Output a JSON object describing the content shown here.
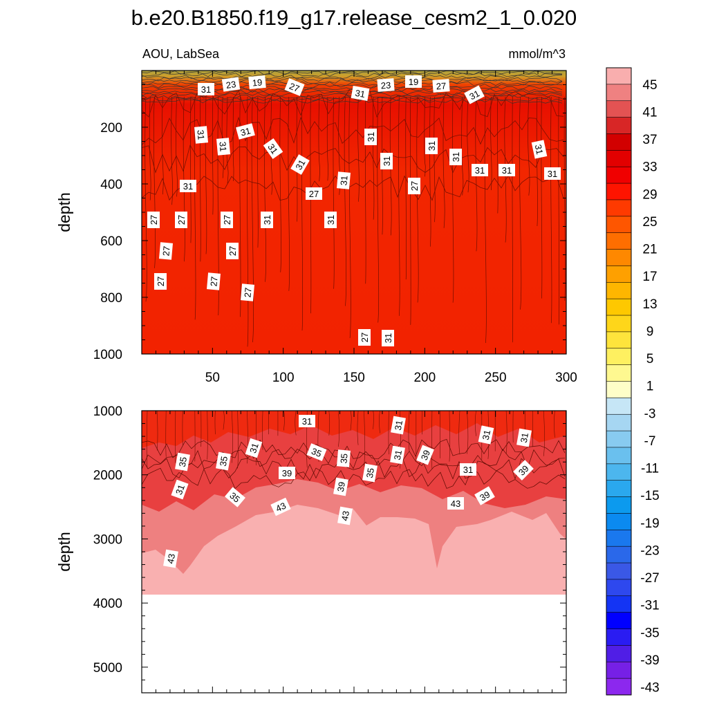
{
  "chart_data": {
    "type": "heatmap",
    "title": "b.e20.B1850.f19_g17.release_cesm2_1_0.020",
    "left_label": "AOU, LabSea",
    "right_label": "mmol/m^3",
    "colorbar_labels": [
      "45",
      "41",
      "37",
      "33",
      "29",
      "25",
      "21",
      "17",
      "13",
      "9",
      "5",
      "1",
      "-3",
      "-7",
      "-11",
      "-15",
      "-19",
      "-23",
      "-27",
      "-31",
      "-35",
      "-39",
      "-43"
    ],
    "palette": [
      "#f9aeae",
      "#ef8181",
      "#e35353",
      "#d82626",
      "#d20000",
      "#e20000",
      "#f00000",
      "#fe1400",
      "#fe3a00",
      "#fe5600",
      "#fe6e00",
      "#fe8800",
      "#fea000",
      "#feb600",
      "#fec800",
      "#fed61a",
      "#fee43c",
      "#fef060",
      "#fef890",
      "#fefec8",
      "#c6e6f6",
      "#a6d6f2",
      "#88cbf0",
      "#6ac0ee",
      "#4cb6ee",
      "#2aa8ee",
      "#0c9aee",
      "#0b8af0",
      "#1a78ee",
      "#2a68ea",
      "#3a58e6",
      "#2e48ee",
      "#1434f4",
      "#0000ff",
      "#2a1cf2",
      "#501ee6",
      "#7620e6",
      "#8c28ee"
    ],
    "series": [
      {
        "x_ticks": [
          "50",
          "100",
          "150",
          "200",
          "250",
          "300"
        ],
        "y_ticks": [
          "200",
          "400",
          "600",
          "800",
          "1000"
        ],
        "ylabel": "depth",
        "xlim": [
          0,
          300
        ],
        "ylim": [
          1000,
          0
        ]
      },
      {
        "x_ticks": [],
        "y_ticks": [
          "1000",
          "2000",
          "3000",
          "4000",
          "5000"
        ],
        "ylabel": "depth",
        "xlim": [
          0,
          300
        ],
        "ylim": [
          5400,
          1000
        ]
      }
    ],
    "top_contour_labels": [
      "31",
      "23",
      "19",
      "27",
      "31",
      "23",
      "19",
      "27",
      "31",
      "31",
      "31",
      "31",
      "31",
      "31",
      "31",
      "31",
      "31",
      "31",
      "31",
      "31",
      "31",
      "31",
      "31",
      "27",
      "31",
      "31",
      "27",
      "27",
      "27",
      "27",
      "31",
      "27",
      "27",
      "27",
      "27",
      "27",
      "27",
      "31"
    ],
    "bottom_contour_labels": [
      "31",
      "31",
      "31",
      "31",
      "31",
      "35",
      "35",
      "35",
      "35",
      "31",
      "39",
      "39",
      "35",
      "31",
      "39",
      "39",
      "31",
      "35",
      "43",
      "43",
      "43",
      "39",
      "43"
    ]
  }
}
